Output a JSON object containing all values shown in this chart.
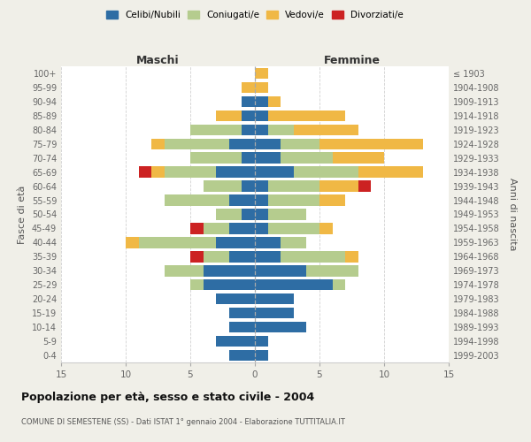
{
  "age_groups": [
    "0-4",
    "5-9",
    "10-14",
    "15-19",
    "20-24",
    "25-29",
    "30-34",
    "35-39",
    "40-44",
    "45-49",
    "50-54",
    "55-59",
    "60-64",
    "65-69",
    "70-74",
    "75-79",
    "80-84",
    "85-89",
    "90-94",
    "95-99",
    "100+"
  ],
  "birth_years": [
    "1999-2003",
    "1994-1998",
    "1989-1993",
    "1984-1988",
    "1979-1983",
    "1974-1978",
    "1969-1973",
    "1964-1968",
    "1959-1963",
    "1954-1958",
    "1949-1953",
    "1944-1948",
    "1939-1943",
    "1934-1938",
    "1929-1933",
    "1924-1928",
    "1919-1923",
    "1914-1918",
    "1909-1913",
    "1904-1908",
    "≤ 1903"
  ],
  "maschi": {
    "celibi": [
      2,
      3,
      2,
      2,
      3,
      4,
      4,
      2,
      3,
      2,
      1,
      2,
      1,
      3,
      1,
      2,
      1,
      1,
      1,
      0,
      0
    ],
    "coniugati": [
      0,
      0,
      0,
      0,
      0,
      1,
      3,
      2,
      6,
      2,
      2,
      5,
      3,
      4,
      4,
      5,
      4,
      0,
      0,
      0,
      0
    ],
    "vedovi": [
      0,
      0,
      0,
      0,
      0,
      0,
      0,
      0,
      1,
      0,
      0,
      0,
      0,
      1,
      0,
      1,
      0,
      2,
      0,
      1,
      0
    ],
    "divorziati": [
      0,
      0,
      0,
      0,
      0,
      0,
      0,
      1,
      0,
      1,
      0,
      0,
      0,
      1,
      0,
      0,
      0,
      0,
      0,
      0,
      0
    ]
  },
  "femmine": {
    "nubili": [
      1,
      1,
      4,
      3,
      3,
      6,
      4,
      2,
      2,
      1,
      1,
      1,
      1,
      3,
      2,
      2,
      1,
      1,
      1,
      0,
      0
    ],
    "coniugate": [
      0,
      0,
      0,
      0,
      0,
      1,
      4,
      5,
      2,
      4,
      3,
      4,
      4,
      5,
      4,
      3,
      2,
      0,
      0,
      0,
      0
    ],
    "vedove": [
      0,
      0,
      0,
      0,
      0,
      0,
      0,
      1,
      0,
      1,
      0,
      2,
      3,
      5,
      4,
      8,
      5,
      6,
      1,
      1,
      1
    ],
    "divorziate": [
      0,
      0,
      0,
      0,
      0,
      0,
      0,
      0,
      0,
      0,
      0,
      0,
      1,
      0,
      0,
      0,
      0,
      0,
      0,
      0,
      0
    ]
  },
  "colors": {
    "celibi_nubili": "#2e6da4",
    "coniugati": "#b5cc8e",
    "vedovi": "#f0b845",
    "divorziati": "#cc2222"
  },
  "title": "Popolazione per età, sesso e stato civile - 2004",
  "subtitle": "COMUNE DI SEMESTENE (SS) - Dati ISTAT 1° gennaio 2004 - Elaborazione TUTTITALIA.IT",
  "ylabel_left": "Fasce di età",
  "ylabel_right": "Anni di nascita",
  "xlabel_left": "Maschi",
  "xlabel_right": "Femmine",
  "xlim": 15,
  "bg_color": "#f0efe8",
  "plot_bg": "#ffffff",
  "legend_labels": [
    "Celibi/Nubili",
    "Coniugati/e",
    "Vedovi/e",
    "Divorziati/e"
  ]
}
